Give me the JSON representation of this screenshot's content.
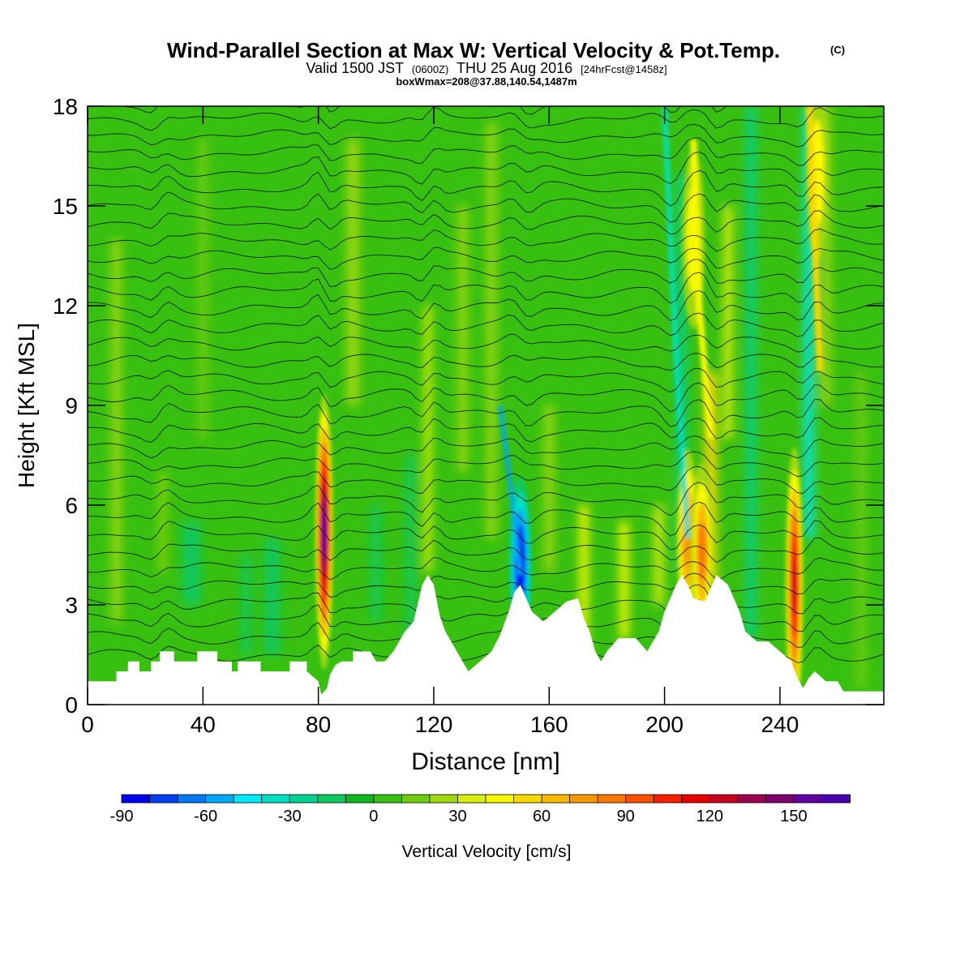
{
  "chart_data": {
    "type": "heatmap",
    "title": "Wind-Parallel Section at Max W: Vertical Velocity & Pot.Temp.",
    "title_mark": "(C)",
    "subtitle_parts": [
      "Valid 1500 JST",
      "(0600Z)",
      "THU 25 Aug 2016",
      "[24hrFcst@1458z]"
    ],
    "subtitle2": "boxWmax=208@37.88,140.54,1487m",
    "xlabel": "Distance [nm]",
    "ylabel": "Height [Kft MSL]",
    "xlim": [
      0,
      276
    ],
    "ylim": [
      0,
      18
    ],
    "x_ticks": [
      0,
      40,
      80,
      120,
      160,
      200,
      240
    ],
    "y_ticks": [
      0,
      3,
      6,
      9,
      12,
      15,
      18
    ],
    "colorbar": {
      "label": "Vertical Velocity [cm/s]",
      "min": -90,
      "max": 170,
      "step": 10,
      "tick_values": [
        -90,
        -60,
        -30,
        0,
        30,
        60,
        90,
        120,
        150
      ],
      "colors": [
        "#0000f0",
        "#0040f0",
        "#0078f0",
        "#00a8f8",
        "#00e8f8",
        "#00e0c0",
        "#00d090",
        "#10c860",
        "#10b820",
        "#38c010",
        "#70cc10",
        "#a0d810",
        "#d8ec10",
        "#f8f800",
        "#f8d800",
        "#f8b800",
        "#f89800",
        "#f87800",
        "#f85000",
        "#f82000",
        "#e80000",
        "#c80020",
        "#a00050",
        "#800070",
        "#6000a0",
        "#4800b0"
      ]
    },
    "terrain_kft": [
      [
        0,
        0.7
      ],
      [
        10,
        0.7
      ],
      [
        10,
        1.0
      ],
      [
        14,
        1.0
      ],
      [
        14,
        1.3
      ],
      [
        18,
        1.3
      ],
      [
        18,
        1.0
      ],
      [
        22,
        1.0
      ],
      [
        22,
        1.3
      ],
      [
        25,
        1.3
      ],
      [
        25,
        1.6
      ],
      [
        30,
        1.6
      ],
      [
        30,
        1.3
      ],
      [
        38,
        1.3
      ],
      [
        38,
        1.6
      ],
      [
        45,
        1.6
      ],
      [
        45,
        1.3
      ],
      [
        50,
        1.3
      ],
      [
        50,
        1.0
      ],
      [
        52,
        1.0
      ],
      [
        52,
        1.3
      ],
      [
        60,
        1.3
      ],
      [
        60,
        1.0
      ],
      [
        70,
        1.0
      ],
      [
        70,
        1.3
      ],
      [
        76,
        1.3
      ],
      [
        76,
        1.0
      ],
      [
        80,
        0.7
      ],
      [
        81,
        0.3
      ],
      [
        83,
        0.5
      ],
      [
        84,
        0.9
      ],
      [
        86,
        1.2
      ],
      [
        88,
        1.3
      ],
      [
        92,
        1.3
      ],
      [
        92,
        1.6
      ],
      [
        98,
        1.6
      ],
      [
        100,
        1.3
      ],
      [
        103,
        1.3
      ],
      [
        106,
        1.6
      ],
      [
        110,
        2.2
      ],
      [
        113,
        2.5
      ],
      [
        116,
        3.6
      ],
      [
        118,
        3.9
      ],
      [
        120,
        3.6
      ],
      [
        122,
        2.7
      ],
      [
        124,
        2.2
      ],
      [
        128,
        1.6
      ],
      [
        130,
        1.3
      ],
      [
        132,
        1.0
      ],
      [
        136,
        1.3
      ],
      [
        140,
        1.6
      ],
      [
        143,
        2.1
      ],
      [
        146,
        2.8
      ],
      [
        148,
        3.4
      ],
      [
        150,
        3.6
      ],
      [
        152,
        3.2
      ],
      [
        154,
        2.8
      ],
      [
        158,
        2.5
      ],
      [
        162,
        2.8
      ],
      [
        166,
        3.1
      ],
      [
        170,
        3.2
      ],
      [
        172,
        2.6
      ],
      [
        174,
        2.2
      ],
      [
        176,
        1.6
      ],
      [
        178,
        1.3
      ],
      [
        180,
        1.6
      ],
      [
        184,
        2.0
      ],
      [
        190,
        2.0
      ],
      [
        194,
        1.6
      ],
      [
        198,
        2.2
      ],
      [
        200,
        2.8
      ],
      [
        202,
        3.2
      ],
      [
        204,
        3.6
      ],
      [
        206,
        3.9
      ],
      [
        208,
        3.6
      ],
      [
        210,
        3.2
      ],
      [
        214,
        3.1
      ],
      [
        216,
        3.5
      ],
      [
        218,
        3.9
      ],
      [
        222,
        3.6
      ],
      [
        224,
        3.2
      ],
      [
        226,
        2.8
      ],
      [
        228,
        2.2
      ],
      [
        232,
        1.9
      ],
      [
        236,
        1.9
      ],
      [
        240,
        1.6
      ],
      [
        244,
        1.3
      ],
      [
        246,
        0.8
      ],
      [
        248,
        0.5
      ],
      [
        250,
        0.8
      ],
      [
        252,
        1.0
      ],
      [
        256,
        0.7
      ],
      [
        260,
        0.7
      ],
      [
        262,
        0.4
      ],
      [
        276,
        0.4
      ]
    ],
    "updraft_cores": [
      {
        "x": 82,
        "z": 5.2,
        "w": 160
      },
      {
        "x": 208,
        "z": 5.0,
        "w": 70
      },
      {
        "x": 213,
        "z": 4.6,
        "w": 80
      },
      {
        "x": 245,
        "z": 3.6,
        "w": 120
      },
      {
        "x": 210,
        "z": 14.0,
        "w": 40
      },
      {
        "x": 253,
        "z": 16.0,
        "w": 40
      },
      {
        "x": 150,
        "z": 4.2,
        "w": -90
      }
    ]
  }
}
